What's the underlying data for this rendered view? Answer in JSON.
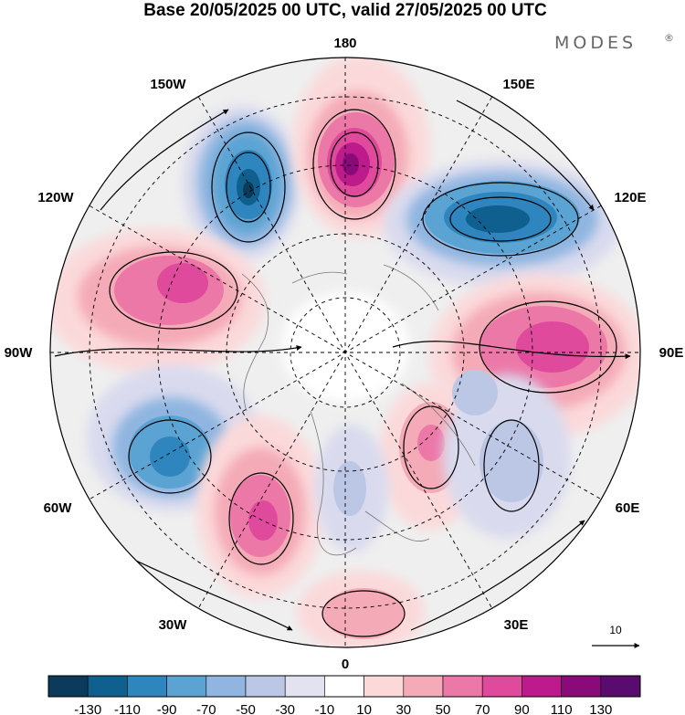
{
  "header": {
    "title": "Base 20/05/2025 00 UTC, valid 27/05/2025 00 UTC",
    "brand": "MODES",
    "brand_mark": "®"
  },
  "map": {
    "projection": "north polar stereographic",
    "longitude_labels": {
      "lon_0": "0",
      "lon_30e": "30E",
      "lon_60e": "60E",
      "lon_90e": "90E",
      "lon_120e": "120E",
      "lon_150e": "150E",
      "lon_180": "180",
      "lon_150w": "150W",
      "lon_120w": "120W",
      "lon_90w": "90W",
      "lon_60w": "60W",
      "lon_30w": "30W"
    },
    "anomaly_centers": [
      {
        "name": "neg-150w",
        "value": -130
      },
      {
        "name": "pos-180",
        "value": 130
      },
      {
        "name": "neg-120e",
        "value": -110
      },
      {
        "name": "pos-110w",
        "value": 90
      },
      {
        "name": "pos-90e",
        "value": 90
      },
      {
        "name": "neg-60w",
        "value": -90
      },
      {
        "name": "pos-40w",
        "value": 90
      },
      {
        "name": "pos-45e",
        "value": 70
      },
      {
        "name": "neg-60e",
        "value": -50
      },
      {
        "name": "neg-20e",
        "value": -50
      },
      {
        "name": "pos-0",
        "value": 50
      }
    ]
  },
  "reference_vector": {
    "label": "10"
  },
  "colorbar": {
    "colors": [
      "#0b3a5a",
      "#0f5f8f",
      "#2f86bf",
      "#5aa3d3",
      "#8fb5e0",
      "#bcc7e6",
      "#e2e2f1",
      "#ffffff",
      "#fbd9da",
      "#f4aab7",
      "#ec78a8",
      "#e04a9c",
      "#bd1a8c",
      "#8a0a79",
      "#5a0b6e"
    ],
    "tick_labels": [
      "-130",
      "-110",
      "-90",
      "-70",
      "-50",
      "-30",
      "-10",
      "10",
      "30",
      "50",
      "70",
      "90",
      "110",
      "130"
    ]
  }
}
